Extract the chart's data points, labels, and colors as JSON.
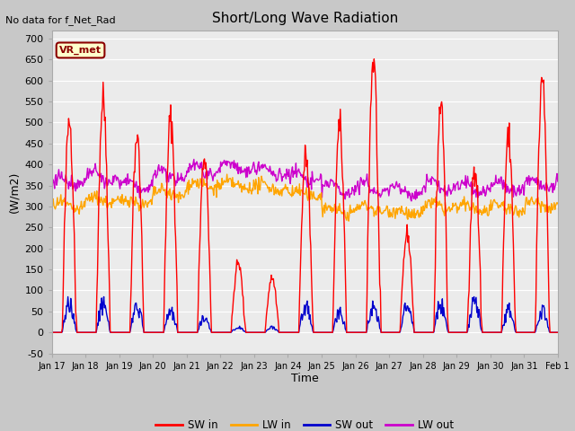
{
  "title": "Short/Long Wave Radiation",
  "subtitle": "No data for f_Net_Rad",
  "ylabel": "(W/m2)",
  "xlabel": "Time",
  "ylim": [
    -50,
    720
  ],
  "legend_label": "VR_met",
  "series_labels": [
    "SW in",
    "LW in",
    "SW out",
    "LW out"
  ],
  "series_colors": [
    "#ff0000",
    "#ffa500",
    "#0000cd",
    "#cc00cc"
  ],
  "fig_bg_color": "#c8c8c8",
  "plot_bg_color": "#ebebeb",
  "n_days": 15,
  "start_day": 17,
  "seed": 42,
  "sw_peaks": [
    505,
    555,
    465,
    510,
    420,
    165,
    130,
    420,
    485,
    650,
    235,
    545,
    400,
    465,
    600
  ],
  "sw_out_peaks": [
    85,
    85,
    70,
    60,
    40,
    15,
    15,
    75,
    60,
    75,
    70,
    80,
    85,
    70,
    65
  ],
  "lw_in_base": [
    300,
    315,
    310,
    330,
    350,
    350,
    345,
    330,
    290,
    295,
    285,
    300,
    295,
    295,
    305
  ],
  "lw_out_base": [
    360,
    370,
    350,
    375,
    390,
    395,
    385,
    370,
    345,
    345,
    338,
    350,
    345,
    348,
    355
  ],
  "tick_labels": [
    "Jan 17",
    "Jan 18",
    "Jan 19",
    "Jan 20",
    "Jan 21",
    "Jan 22",
    "Jan 23",
    "Jan 24",
    "Jan 25",
    "Jan 26",
    "Jan 27",
    "Jan 28",
    "Jan 29",
    "Jan 30",
    "Jan 31",
    "Feb 1"
  ]
}
